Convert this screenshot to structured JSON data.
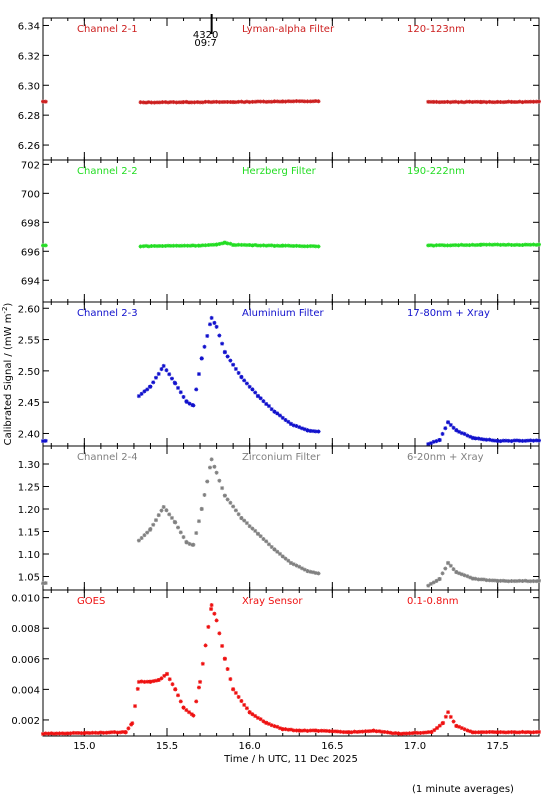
{
  "chart_data": {
    "type": "scatter",
    "xlabel": "Time / h UTC, 11 Dec 2025",
    "ylabel": "Calibrated Signal / (mW m",
    "ylabel_sup": "-2",
    "ylabel_close": ")",
    "footnote": "(1 minute averages)",
    "xlim": [
      14.75,
      17.75
    ],
    "xticks": [
      15.0,
      15.5,
      16.0,
      16.5,
      17.0,
      17.5
    ],
    "xtick_labels": [
      "15.0",
      "15.5",
      "16.0",
      "16.5",
      "17.0",
      "17.5"
    ],
    "marker_label": {
      "x": 15.77,
      "line1": "4320",
      "line2": "09:7"
    },
    "panels": [
      {
        "name": "Channel 2-1",
        "filter": "Lyman-alpha Filter",
        "band": "120-123nm",
        "color": "#cc1e1e",
        "ylim": [
          6.25,
          6.345
        ],
        "yticks": [
          6.26,
          6.28,
          6.3,
          6.32,
          6.34
        ],
        "ytick_labels": [
          "6.26",
          "6.28",
          "6.30",
          "6.32",
          "6.34"
        ],
        "segments": [
          {
            "x": [
              14.75,
              14.77
            ],
            "y": [
              6.289,
              6.289
            ]
          },
          {
            "x": [
              15.34,
              15.6,
              15.9,
              16.2,
              16.43
            ],
            "y": [
              6.2885,
              6.2887,
              6.2888,
              6.2892,
              6.2893
            ]
          },
          {
            "x": [
              17.08,
              17.4,
              17.75
            ],
            "y": [
              6.2888,
              6.2888,
              6.2889
            ]
          }
        ]
      },
      {
        "name": "Channel 2-2",
        "filter": "Herzberg Filter",
        "band": "190-222nm",
        "color": "#22dd22",
        "ylim": [
          692.5,
          702.3
        ],
        "yticks": [
          694,
          696,
          698,
          700,
          702
        ],
        "ytick_labels": [
          "694",
          "696",
          "698",
          "700",
          "702"
        ],
        "segments": [
          {
            "x": [
              14.75,
              14.77
            ],
            "y": [
              696.4,
              696.4
            ]
          },
          {
            "x": [
              15.34,
              15.7,
              15.8,
              15.85,
              15.9,
              16.2,
              16.43
            ],
            "y": [
              696.35,
              696.4,
              696.45,
              696.6,
              696.45,
              696.38,
              696.35
            ]
          },
          {
            "x": [
              17.08,
              17.4,
              17.75
            ],
            "y": [
              696.4,
              696.45,
              696.45
            ]
          }
        ]
      },
      {
        "name": "Channel 2-3",
        "filter": "Aluminium Filter",
        "band": "17-80nm + Xray",
        "color": "#1010cc",
        "ylim": [
          2.38,
          2.61
        ],
        "yticks": [
          2.4,
          2.45,
          2.5,
          2.55,
          2.6
        ],
        "ytick_labels": [
          "2.40",
          "2.45",
          "2.50",
          "2.55",
          "2.60"
        ],
        "segments": [
          {
            "x": [
              14.75,
              14.77
            ],
            "y": [
              2.388,
              2.388
            ]
          },
          {
            "x": [
              15.33,
              15.4,
              15.48,
              15.55,
              15.62,
              15.66,
              15.71,
              15.77,
              15.8,
              15.85,
              15.95,
              16.05,
              16.15,
              16.25,
              16.35,
              16.43
            ],
            "y": [
              2.46,
              2.475,
              2.508,
              2.48,
              2.45,
              2.445,
              2.52,
              2.585,
              2.57,
              2.53,
              2.49,
              2.46,
              2.435,
              2.415,
              2.405,
              2.403
            ]
          },
          {
            "x": [
              17.08,
              17.15,
              17.2,
              17.25,
              17.35,
              17.5,
              17.75
            ],
            "y": [
              2.383,
              2.39,
              2.418,
              2.405,
              2.393,
              2.388,
              2.389
            ]
          }
        ]
      },
      {
        "name": "Channel 2-4",
        "filter": "Zirconium Filter",
        "band": "6-20nm + Xray",
        "color": "#808080",
        "ylim": [
          1.02,
          1.34
        ],
        "yticks": [
          1.05,
          1.1,
          1.15,
          1.2,
          1.25,
          1.3
        ],
        "ytick_labels": [
          "1.05",
          "1.10",
          "1.15",
          "1.20",
          "1.25",
          "1.30"
        ],
        "segments": [
          {
            "x": [
              14.75,
              14.77
            ],
            "y": [
              1.035,
              1.035
            ]
          },
          {
            "x": [
              15.33,
              15.4,
              15.48,
              15.55,
              15.62,
              15.66,
              15.71,
              15.77,
              15.8,
              15.85,
              15.95,
              16.05,
              16.15,
              16.25,
              16.35,
              16.43
            ],
            "y": [
              1.13,
              1.155,
              1.205,
              1.17,
              1.125,
              1.12,
              1.2,
              1.31,
              1.28,
              1.23,
              1.18,
              1.145,
              1.11,
              1.08,
              1.062,
              1.056
            ]
          },
          {
            "x": [
              17.08,
              17.15,
              17.2,
              17.25,
              17.35,
              17.5,
              17.75
            ],
            "y": [
              1.03,
              1.045,
              1.08,
              1.06,
              1.045,
              1.04,
              1.04
            ]
          }
        ]
      },
      {
        "name": "GOES",
        "filter": "Xray Sensor",
        "band": "0.1-0.8nm",
        "color": "#ee1010",
        "ylim": [
          0.00095,
          0.0105
        ],
        "yticks": [
          0.002,
          0.004,
          0.006,
          0.008,
          0.01
        ],
        "ytick_labels": [
          "0.002",
          "0.004",
          "0.006",
          "0.008",
          "0.010"
        ],
        "segments": [
          {
            "x": [
              14.75,
              15.0,
              15.25,
              15.29,
              15.33,
              15.4,
              15.45,
              15.5,
              15.55,
              15.6,
              15.66,
              15.7,
              15.77,
              15.8,
              15.85,
              15.9,
              16.0,
              16.1,
              16.2,
              16.3,
              16.4,
              16.6,
              16.75,
              16.9,
              17.1,
              17.17,
              17.2,
              17.25,
              17.35,
              17.5,
              17.75
            ],
            "y": [
              0.0011,
              0.00115,
              0.0012,
              0.0018,
              0.0045,
              0.0045,
              0.0046,
              0.005,
              0.004,
              0.0028,
              0.0023,
              0.0045,
              0.0095,
              0.0085,
              0.006,
              0.004,
              0.0025,
              0.0018,
              0.0014,
              0.0013,
              0.0013,
              0.0012,
              0.0013,
              0.0011,
              0.0012,
              0.0018,
              0.0025,
              0.0016,
              0.0012,
              0.0012,
              0.0012
            ]
          }
        ]
      }
    ]
  }
}
